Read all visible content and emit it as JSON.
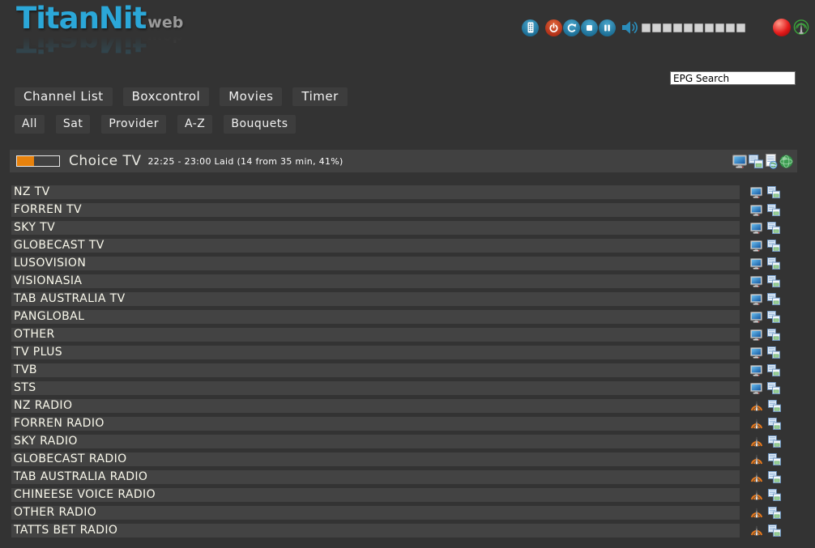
{
  "app": {
    "title": "TitanNit",
    "title_suffix": "web"
  },
  "controls": {
    "buttons": [
      {
        "id": "remote",
        "icon": "remote-icon"
      },
      {
        "id": "power",
        "icon": "power-icon"
      },
      {
        "id": "reload",
        "icon": "reload-icon"
      },
      {
        "id": "stop",
        "icon": "stop-icon"
      },
      {
        "id": "pause",
        "icon": "pause-icon"
      }
    ],
    "volume": {
      "icon": "speaker-icon",
      "segments": 10,
      "active_segments": 0
    },
    "record_indicator_color": "#e31b1b",
    "stream_status_icon": "antenna-icon"
  },
  "search": {
    "value": "EPG Search"
  },
  "nav_main": [
    "Channel List",
    "Boxcontrol",
    "Movies",
    "Timer"
  ],
  "nav_filters": [
    "All",
    "Sat",
    "Provider",
    "A-Z",
    "Bouquets"
  ],
  "now_playing": {
    "channel": "Choice TV",
    "epg": "22:25 - 23:00 Laid (14 from 35 min, 41%)",
    "progress_percent": 41,
    "icons": [
      "tv-stream-icon",
      "epg-list-icon",
      "epg-page-icon",
      "web-epg-icon"
    ]
  },
  "channels": [
    {
      "name": "NZ TV",
      "type": "tv"
    },
    {
      "name": "FORREN TV",
      "type": "tv"
    },
    {
      "name": "SKY TV",
      "type": "tv"
    },
    {
      "name": "GLOBECAST TV",
      "type": "tv"
    },
    {
      "name": "LUSOVISION",
      "type": "tv"
    },
    {
      "name": "VISIONASIA",
      "type": "tv"
    },
    {
      "name": "TAB AUSTRALIA TV",
      "type": "tv"
    },
    {
      "name": "PANGLOBAL",
      "type": "tv"
    },
    {
      "name": "OTHER",
      "type": "tv"
    },
    {
      "name": "TV PLUS",
      "type": "tv"
    },
    {
      "name": "TVB",
      "type": "tv"
    },
    {
      "name": "STS",
      "type": "tv"
    },
    {
      "name": "NZ RADIO",
      "type": "radio"
    },
    {
      "name": "FORREN RADIO",
      "type": "radio"
    },
    {
      "name": "SKY RADIO",
      "type": "radio"
    },
    {
      "name": "GLOBECAST RADIO",
      "type": "radio"
    },
    {
      "name": "TAB AUSTRALIA RADIO",
      "type": "radio"
    },
    {
      "name": "CHINEESE VOICE RADIO",
      "type": "radio"
    },
    {
      "name": "OTHER RADIO",
      "type": "radio"
    },
    {
      "name": "TATTS BET RADIO",
      "type": "radio"
    }
  ],
  "colors": {
    "background": "#333333",
    "panel": "#414141",
    "row": "#434343",
    "button": "#3d3d3d",
    "accent_blue": "#2ba7d8",
    "icon_blue": "#1c6e95",
    "orange": "#e8820c",
    "power_red": "#b02f17",
    "record_red": "#e31b1b",
    "signal_green": "#3aa53a"
  }
}
